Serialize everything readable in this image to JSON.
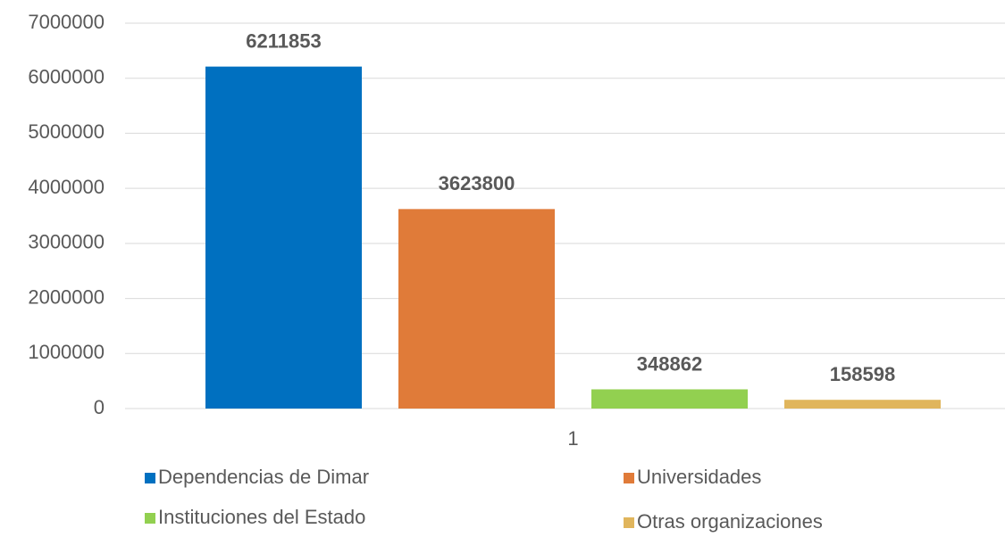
{
  "chart_data": {
    "type": "bar",
    "categories": [
      "1"
    ],
    "series": [
      {
        "name": "Dependencias de Dimar",
        "color": "#0070c0",
        "values": [
          6211853
        ]
      },
      {
        "name": "Universidades",
        "color": "#e07b39",
        "values": [
          3623800
        ]
      },
      {
        "name": "Instituciones del Estado",
        "color": "#92d050",
        "values": [
          348862
        ]
      },
      {
        "name": "Otras organizaciones",
        "color": "#e0b55c",
        "values": [
          158598
        ]
      }
    ],
    "ylim": [
      0,
      7000000
    ],
    "yticks": [
      0,
      1000000,
      2000000,
      3000000,
      4000000,
      5000000,
      6000000,
      7000000
    ],
    "grid": true,
    "legend": "bottom"
  }
}
